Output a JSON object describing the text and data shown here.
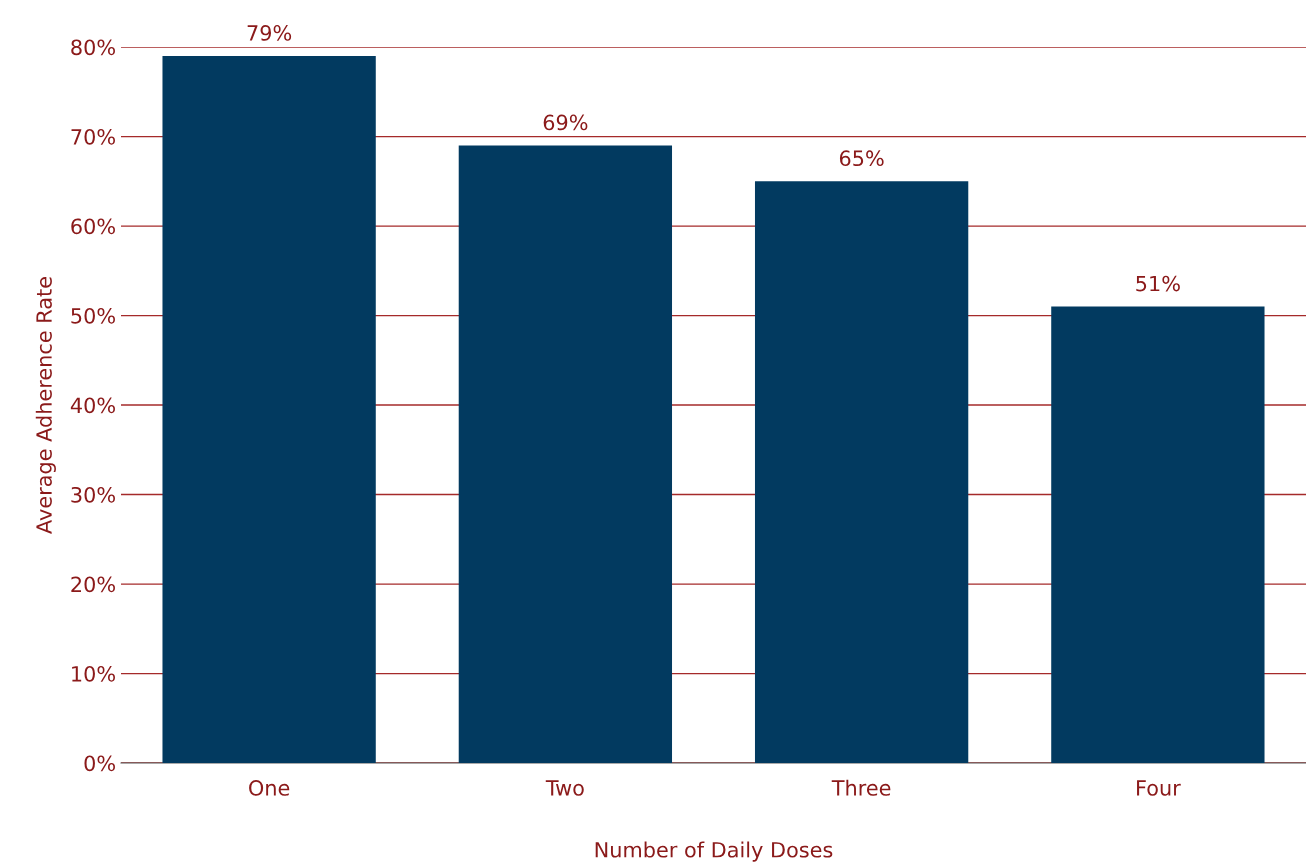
{
  "chart_data": {
    "type": "bar",
    "xlabel": "Number of Daily Doses",
    "ylabel": "Average Adherence Rate",
    "categories": [
      "One",
      "Two",
      "Three",
      "Four"
    ],
    "values": [
      79,
      69,
      65,
      51
    ],
    "value_labels": [
      "79%",
      "69%",
      "65%",
      "51%"
    ],
    "color": "#023a60",
    "ylim": [
      0,
      80
    ],
    "yticks": [
      {
        "value": 0,
        "label": "0%"
      },
      {
        "value": 10,
        "label": "10%"
      },
      {
        "value": 20,
        "label": "20%"
      },
      {
        "value": 30,
        "label": "30%"
      },
      {
        "value": 40,
        "label": "40%"
      },
      {
        "value": 50,
        "label": "50%"
      },
      {
        "value": 60,
        "label": "60%"
      },
      {
        "value": 70,
        "label": "70%"
      },
      {
        "value": 80,
        "label": "80%"
      }
    ],
    "grid": "y",
    "legend": false
  }
}
